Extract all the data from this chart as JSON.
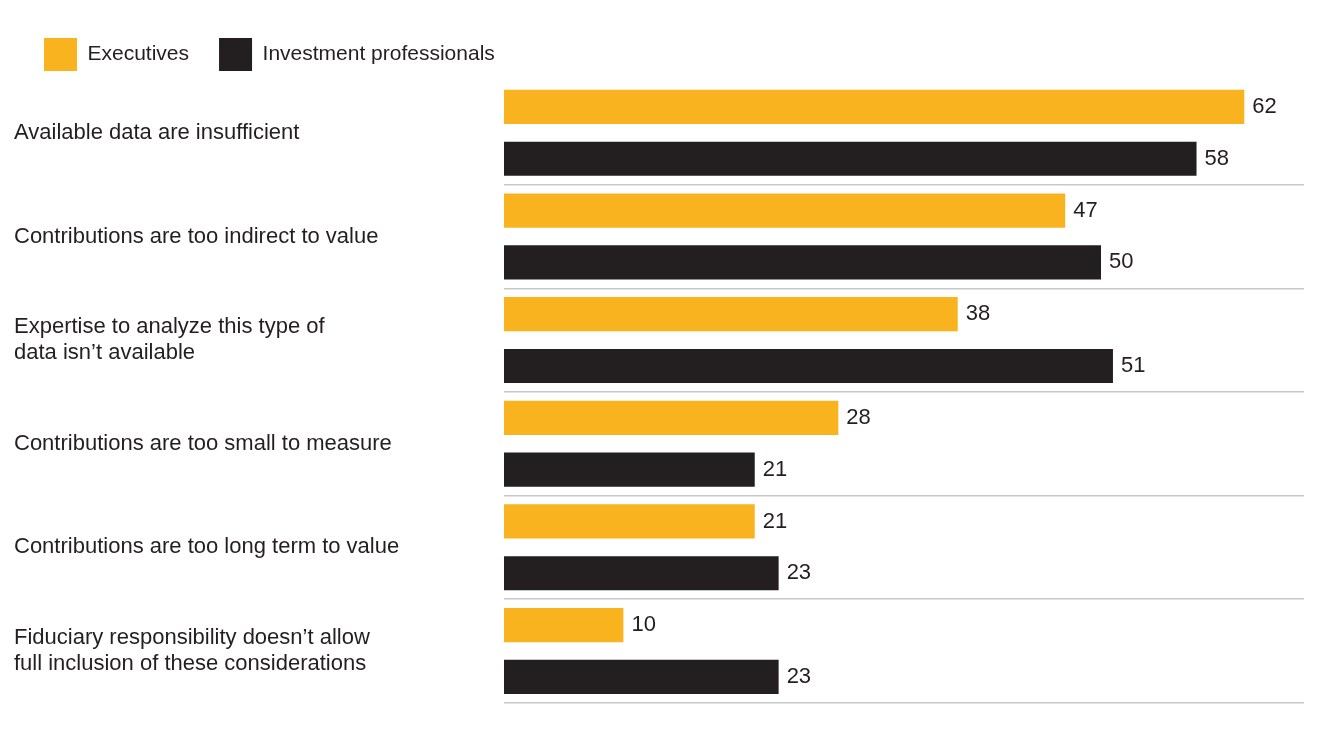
{
  "chart_data": {
    "type": "bar",
    "orientation": "horizontal",
    "categories": [
      "Available data are insufficient",
      "Contributions are too indirect to value",
      "Expertise to analyze this type of\ndata isn’t available",
      "Contributions are too small to measure",
      "Contributions are too long term to value",
      "Fiduciary responsibility doesn’t allow\nfull inclusion of these considerations"
    ],
    "series": [
      {
        "name": "Executives",
        "color": "#f9b31e",
        "values": [
          62,
          47,
          38,
          28,
          21,
          10
        ]
      },
      {
        "name": "Investment professionals",
        "color": "#231f20",
        "values": [
          58,
          50,
          51,
          21,
          23,
          23
        ]
      }
    ],
    "xlim": [
      0,
      67
    ],
    "tick_labels": "y",
    "grid": "y",
    "legend": "top left",
    "data_labels": true
  }
}
